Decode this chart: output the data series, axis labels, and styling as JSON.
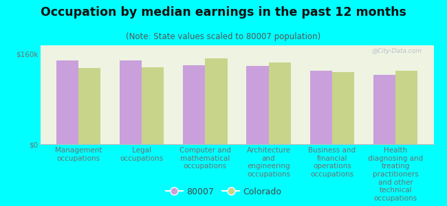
{
  "title": "Occupation by median earnings in the past 12 months",
  "subtitle": "(Note: State values scaled to 80007 population)",
  "background_color": "#00FFFF",
  "plot_background_color": "#eef3e2",
  "categories": [
    "Management\noccupations",
    "Legal\noccupations",
    "Computer and\nmathematical\noccupations",
    "Architecture\nand\nengineering\noccupations",
    "Business and\nfinancial\noperations\noccupations",
    "Health\ndiagnosing and\ntreating\npractitioners\nand other\ntechnical\noccupations"
  ],
  "values_80007": [
    148000,
    148000,
    140000,
    138000,
    130000,
    123000
  ],
  "values_colorado": [
    135000,
    136000,
    152000,
    145000,
    128000,
    130000
  ],
  "color_80007": "#c9a0dc",
  "color_colorado": "#c8d48a",
  "ylim": [
    0,
    175000
  ],
  "yticks": [
    0,
    160000
  ],
  "ytick_labels": [
    "$0",
    "$160k"
  ],
  "legend_labels": [
    "80007",
    "Colorado"
  ],
  "bar_width": 0.35,
  "title_fontsize": 12.5,
  "subtitle_fontsize": 8.5,
  "tick_label_fontsize": 7.5,
  "axis_label_color": "#707070",
  "watermark": "@City-Data.com"
}
